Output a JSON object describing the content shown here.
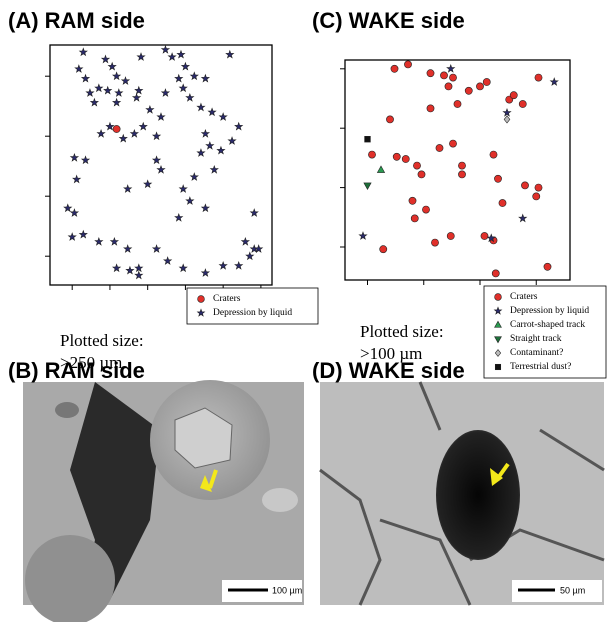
{
  "chart_data": [
    {
      "type": "scatter",
      "title": "(A) RAM side",
      "note": "Plotted size:",
      "note_size": ">250 µm",
      "xlim": [
        0,
        100
      ],
      "ylim": [
        0,
        100
      ],
      "xticks": [
        10,
        27,
        44,
        61,
        78,
        95
      ],
      "yticks": [
        12,
        37,
        62,
        87
      ],
      "legend": "below right",
      "series": [
        {
          "name": "Craters",
          "color": "#e0302a",
          "marker": "circle",
          "x": [
            30
          ],
          "values": [
            65
          ]
        },
        {
          "name": "Depression by liquid",
          "color": "#2a2a6a",
          "marker": "star",
          "x": [
            15,
            25,
            28,
            34,
            16,
            13,
            41,
            52,
            55,
            59,
            61,
            58,
            52,
            60,
            65,
            70,
            81,
            18,
            22,
            26,
            30,
            31,
            39,
            30,
            20,
            40,
            45,
            50,
            63,
            68,
            73,
            78,
            85,
            82,
            70,
            72,
            77,
            68,
            42,
            38,
            33,
            48,
            27,
            23,
            11,
            16,
            12,
            8,
            11,
            10,
            15,
            22,
            29,
            35,
            44,
            48,
            50,
            60,
            63,
            70,
            58,
            35,
            48,
            53,
            40,
            36,
            30,
            60,
            70,
            78,
            85,
            90,
            92,
            94,
            88,
            92,
            65,
            74,
            40
          ],
          "values": [
            97,
            94,
            91,
            85,
            86,
            90,
            95,
            98,
            95,
            96,
            91,
            86,
            80,
            82,
            87,
            86,
            96,
            80,
            82,
            81,
            87,
            80,
            78,
            76,
            76,
            81,
            73,
            70,
            78,
            74,
            72,
            70,
            66,
            60,
            63,
            58,
            56,
            55,
            66,
            63,
            61,
            62,
            66,
            63,
            53,
            52,
            44,
            32,
            30,
            20,
            21,
            18,
            18,
            40,
            42,
            52,
            48,
            40,
            35,
            32,
            28,
            15,
            15,
            10,
            7,
            6,
            7,
            7,
            5,
            8,
            8,
            12,
            15,
            15,
            18,
            30,
            45,
            48,
            4
          ]
        }
      ]
    },
    {
      "type": "scatter",
      "title": "(C) WAKE side",
      "note": "Plotted size:",
      "note_size": ">100 µm",
      "xlim": [
        0,
        100
      ],
      "ylim": [
        0,
        100
      ],
      "xticks": [
        10,
        35,
        60,
        85
      ],
      "yticks": [
        15,
        42,
        69,
        96
      ],
      "legend": "below right",
      "series": [
        {
          "name": "Craters",
          "color": "#e0302a",
          "marker": "circle",
          "x": [
            22,
            28,
            38,
            44,
            48,
            46,
            55,
            63,
            73,
            75,
            79,
            86,
            38,
            60,
            42,
            48,
            20,
            12,
            23,
            27,
            32,
            34,
            52,
            66,
            52,
            68,
            80,
            86,
            85,
            30,
            31,
            36,
            40,
            47,
            70,
            62,
            17,
            67,
            90,
            66,
            50
          ],
          "values": [
            96,
            98,
            94,
            93,
            92,
            88,
            86,
            90,
            82,
            84,
            80,
            92,
            78,
            88,
            60,
            62,
            73,
            57,
            56,
            55,
            52,
            48,
            52,
            57,
            48,
            46,
            43,
            42,
            38,
            36,
            28,
            32,
            17,
            20,
            35,
            20,
            14,
            3,
            6,
            18,
            80
          ]
        },
        {
          "name": "Depression by liquid",
          "color": "#2a2a6a",
          "marker": "star",
          "x": [
            47,
            93,
            72,
            79,
            8,
            65
          ],
          "values": [
            96,
            90,
            76,
            28,
            20,
            19
          ]
        },
        {
          "name": "Carrot-shaped track",
          "color": "#2a9a50",
          "marker": "triangle-up",
          "x": [
            16
          ],
          "values": [
            50
          ]
        },
        {
          "name": "Straight track",
          "color": "#1e6e3a",
          "marker": "triangle-down",
          "x": [
            10
          ],
          "values": [
            43
          ]
        },
        {
          "name": "Contaminant?",
          "color": "#bbbbbb",
          "marker": "diamond",
          "x": [
            72
          ],
          "values": [
            73
          ]
        },
        {
          "name": "Terrestrial dust?",
          "color": "#111111",
          "marker": "square",
          "x": [
            10
          ],
          "values": [
            64
          ]
        }
      ]
    }
  ],
  "images": [
    {
      "label": "(B) RAM side",
      "scale_bar": "100 µm"
    },
    {
      "label": "(D) WAKE side",
      "scale_bar": "50 µm"
    }
  ]
}
